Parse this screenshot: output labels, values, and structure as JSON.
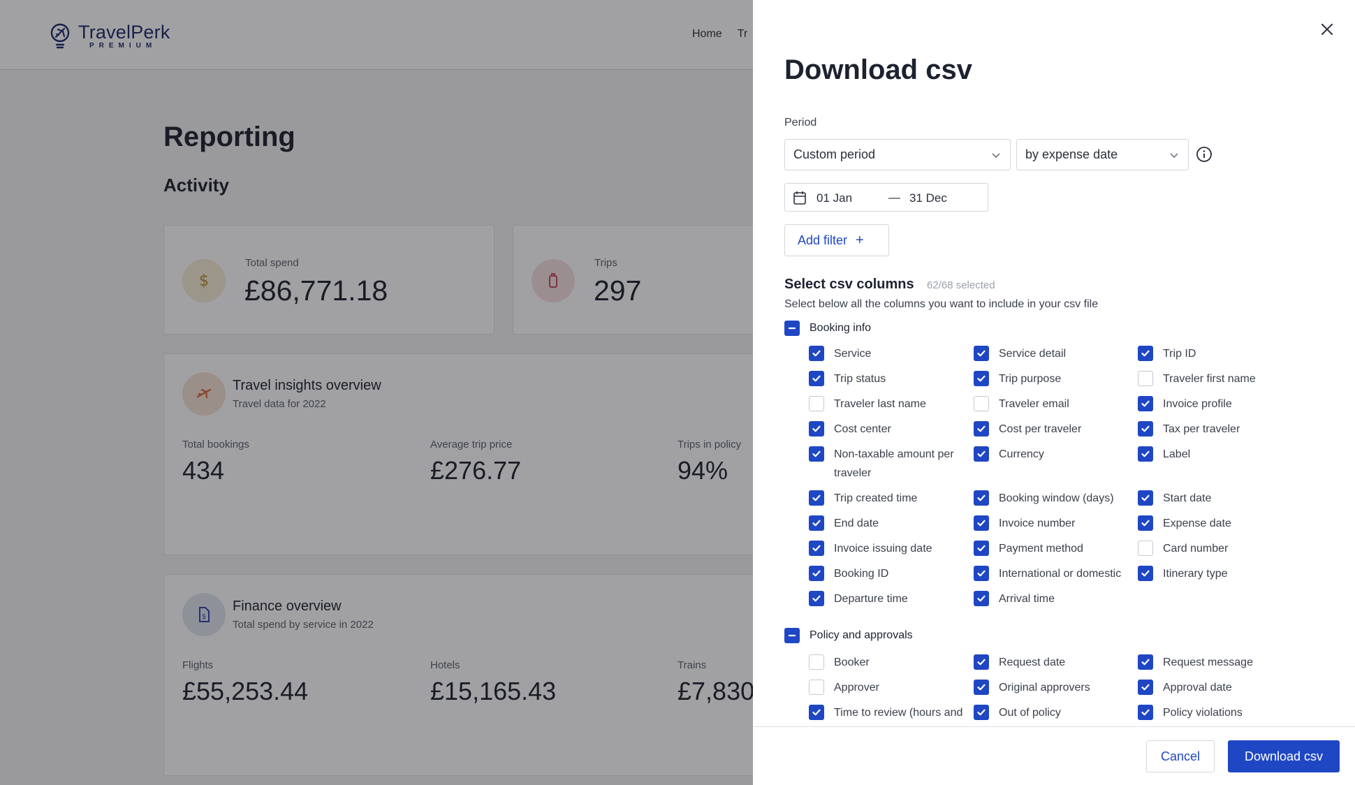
{
  "brand": {
    "name": "TravelPerk",
    "tier": "PREMIUM"
  },
  "nav": {
    "items": [
      "Home",
      "Tr"
    ]
  },
  "page": {
    "title": "Reporting",
    "section": "Activity"
  },
  "kpis": [
    {
      "label": "Total spend",
      "value": "£86,771.18",
      "icon": "dollar-icon"
    },
    {
      "label": "Trips",
      "value": "297",
      "icon": "suitcase-icon"
    }
  ],
  "insights": {
    "title": "Travel insights overview",
    "subtitle": "Travel data for 2022",
    "stats": [
      {
        "label": "Total bookings",
        "value": "434"
      },
      {
        "label": "Average trip price",
        "value": "£276.77"
      },
      {
        "label": "Trips in policy",
        "value": "94%"
      }
    ]
  },
  "finance": {
    "title": "Finance overview",
    "subtitle": "Total spend by service in 2022",
    "stats": [
      {
        "label": "Flights",
        "value": "£55,253.44"
      },
      {
        "label": "Hotels",
        "value": "£15,165.43"
      },
      {
        "label": "Trains",
        "value": "£7,830"
      }
    ]
  },
  "drawer": {
    "title": "Download csv",
    "period_label": "Period",
    "period_select": "Custom period",
    "date_basis_select": "by expense date",
    "date_from": "01 Jan",
    "date_sep": "—",
    "date_to": "31 Dec",
    "add_filter": "Add filter",
    "add_filter_plus": "+",
    "columns_title": "Select csv columns",
    "columns_count": "62/68 selected",
    "columns_desc": "Select below all the columns you want to include in your csv file",
    "groups": [
      {
        "name": "Booking info",
        "state": "indeterminate",
        "items": [
          {
            "label": "Service",
            "checked": true
          },
          {
            "label": "Service detail",
            "checked": true
          },
          {
            "label": "Trip ID",
            "checked": true
          },
          {
            "label": "Trip status",
            "checked": true
          },
          {
            "label": "Trip purpose",
            "checked": true
          },
          {
            "label": "Traveler first name",
            "checked": false
          },
          {
            "label": "Traveler last name",
            "checked": false
          },
          {
            "label": "Traveler email",
            "checked": false
          },
          {
            "label": "Invoice profile",
            "checked": true
          },
          {
            "label": "Cost center",
            "checked": true
          },
          {
            "label": "Cost per traveler",
            "checked": true
          },
          {
            "label": "Tax per traveler",
            "checked": true
          },
          {
            "label": "Non-taxable amount per traveler",
            "checked": true
          },
          {
            "label": "Currency",
            "checked": true
          },
          {
            "label": "Label",
            "checked": true
          },
          {
            "label": "Trip created time",
            "checked": true
          },
          {
            "label": "Booking window (days)",
            "checked": true
          },
          {
            "label": "Start date",
            "checked": true
          },
          {
            "label": "End date",
            "checked": true
          },
          {
            "label": "Invoice number",
            "checked": true
          },
          {
            "label": "Expense date",
            "checked": true
          },
          {
            "label": "Invoice issuing date",
            "checked": true
          },
          {
            "label": "Payment method",
            "checked": true
          },
          {
            "label": "Card number",
            "checked": false
          },
          {
            "label": "Booking ID",
            "checked": true
          },
          {
            "label": "International or domestic",
            "checked": true
          },
          {
            "label": "Itinerary type",
            "checked": true
          },
          {
            "label": "Departure time",
            "checked": true
          },
          {
            "label": "Arrival time",
            "checked": true
          }
        ]
      },
      {
        "name": "Policy and approvals",
        "state": "indeterminate",
        "items": [
          {
            "label": "Booker",
            "checked": false
          },
          {
            "label": "Request date",
            "checked": true
          },
          {
            "label": "Request message",
            "checked": true
          },
          {
            "label": "Approver",
            "checked": false
          },
          {
            "label": "Original approvers",
            "checked": true
          },
          {
            "label": "Approval date",
            "checked": true
          },
          {
            "label": "Time to review (hours and",
            "checked": true
          },
          {
            "label": "Out of policy",
            "checked": true
          },
          {
            "label": "Policy violations",
            "checked": true
          }
        ]
      }
    ],
    "cancel_label": "Cancel",
    "download_label": "Download csv"
  },
  "colors": {
    "accent": "#1f47c4",
    "overlay": "rgba(20,20,24,0.40)"
  }
}
